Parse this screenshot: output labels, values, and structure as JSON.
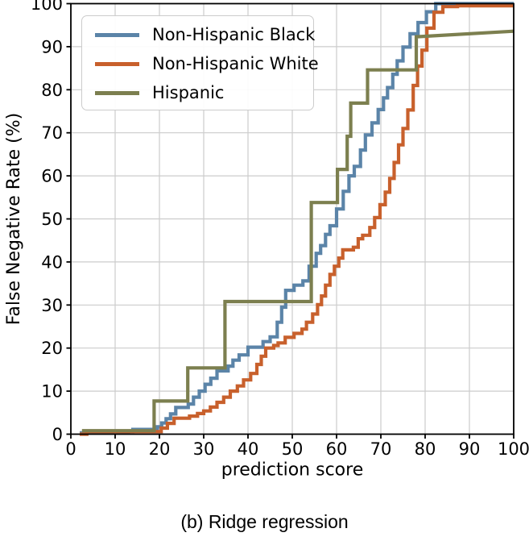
{
  "figure": {
    "caption": "(b) Ridge regression"
  },
  "chart_data": {
    "type": "line",
    "title": "",
    "xlabel": "prediction score",
    "ylabel": "False Negative Rate (%)",
    "xlim": [
      0,
      100
    ],
    "ylim": [
      0,
      100
    ],
    "xticks": [
      0,
      10,
      20,
      30,
      40,
      50,
      60,
      70,
      80,
      90,
      100
    ],
    "yticks": [
      0,
      10,
      20,
      30,
      40,
      50,
      60,
      70,
      80,
      90,
      100
    ],
    "grid": true,
    "grid_color": "#cccccc",
    "spine_color": "#000000",
    "legend_position": "upper left",
    "series": [
      {
        "name": "Non-Hispanic Black",
        "color": "#5b84a8",
        "interp": "step-post",
        "points": [
          [
            2,
            0.3
          ],
          [
            13,
            0.6
          ],
          [
            14,
            1.1
          ],
          [
            19.5,
            1.7
          ],
          [
            20.5,
            2.6
          ],
          [
            21.5,
            3.6
          ],
          [
            22.5,
            4.7
          ],
          [
            23.7,
            6.2
          ],
          [
            26.5,
            7.0
          ],
          [
            27.7,
            8.6
          ],
          [
            29,
            10.0
          ],
          [
            30.3,
            11.6
          ],
          [
            31.6,
            13.0
          ],
          [
            33,
            14.7
          ],
          [
            35.5,
            15.8
          ],
          [
            36.6,
            17.2
          ],
          [
            38,
            18.4
          ],
          [
            40,
            20.2
          ],
          [
            43.4,
            21.5
          ],
          [
            45,
            22.6
          ],
          [
            46.6,
            26.0
          ],
          [
            47.6,
            29.5
          ],
          [
            48.5,
            33.4
          ],
          [
            50.4,
            34.6
          ],
          [
            52.4,
            35.6
          ],
          [
            53.8,
            39.0
          ],
          [
            55.4,
            42.0
          ],
          [
            56.4,
            43.8
          ],
          [
            57.5,
            46.4
          ],
          [
            58.5,
            48.4
          ],
          [
            60,
            52.3
          ],
          [
            61.5,
            56.4
          ],
          [
            62.8,
            60.0
          ],
          [
            64,
            62.2
          ],
          [
            65.4,
            66.0
          ],
          [
            66.5,
            69.5
          ],
          [
            68,
            72.3
          ],
          [
            69.4,
            75.4
          ],
          [
            70.6,
            78.1
          ],
          [
            71.5,
            80.5
          ],
          [
            72.7,
            83.6
          ],
          [
            73.7,
            86.7
          ],
          [
            75,
            89.9
          ],
          [
            76.6,
            93.0
          ],
          [
            78.4,
            95.6
          ],
          [
            80.3,
            98.1
          ],
          [
            82.4,
            100
          ],
          [
            100,
            100
          ]
        ]
      },
      {
        "name": "Non-Hispanic White",
        "color": "#c8602c",
        "interp": "step-post",
        "points": [
          [
            2,
            0
          ],
          [
            3.6,
            0.6
          ],
          [
            19,
            0.6
          ],
          [
            20.4,
            1.4
          ],
          [
            21.8,
            2.5
          ],
          [
            23.3,
            3.7
          ],
          [
            26.8,
            4.2
          ],
          [
            28.6,
            4.8
          ],
          [
            30,
            5.4
          ],
          [
            31.5,
            6.3
          ],
          [
            33,
            7.4
          ],
          [
            34.5,
            8.6
          ],
          [
            36,
            10.0
          ],
          [
            37.6,
            11.2
          ],
          [
            39,
            12.6
          ],
          [
            40.6,
            14.1
          ],
          [
            42,
            16.2
          ],
          [
            43,
            18.1
          ],
          [
            44,
            20.0
          ],
          [
            45.8,
            20.6
          ],
          [
            46.8,
            21.2
          ],
          [
            48.4,
            22.5
          ],
          [
            50.4,
            23.4
          ],
          [
            52.2,
            24.4
          ],
          [
            53.2,
            26.0
          ],
          [
            54.6,
            27.9
          ],
          [
            55.7,
            30.1
          ],
          [
            56.6,
            32.1
          ],
          [
            57.5,
            34.6
          ],
          [
            58.5,
            37.1
          ],
          [
            59.5,
            39.0
          ],
          [
            60.5,
            40.9
          ],
          [
            61.4,
            42.8
          ],
          [
            63.8,
            43.4
          ],
          [
            64.9,
            45.4
          ],
          [
            65.9,
            46.2
          ],
          [
            67.5,
            48.0
          ],
          [
            68.6,
            50.3
          ],
          [
            69.8,
            53.3
          ],
          [
            71,
            56.2
          ],
          [
            72,
            59.4
          ],
          [
            73,
            63.1
          ],
          [
            74,
            67.2
          ],
          [
            75,
            71.0
          ],
          [
            76.1,
            75.3
          ],
          [
            77.3,
            81.0
          ],
          [
            78.3,
            85.5
          ],
          [
            79.3,
            89.2
          ],
          [
            80.4,
            94.3
          ],
          [
            82,
            98.0
          ],
          [
            84,
            99.3
          ],
          [
            87.3,
            99.5
          ],
          [
            100,
            99.5
          ]
        ]
      },
      {
        "name": "Hispanic",
        "color": "#7c7f4f",
        "interp": "linear",
        "points": [
          [
            2.5,
            0.8
          ],
          [
            18.8,
            0.8
          ],
          [
            18.8,
            7.7
          ],
          [
            26.4,
            7.7
          ],
          [
            26.4,
            15.4
          ],
          [
            34.8,
            15.4
          ],
          [
            34.8,
            30.8
          ],
          [
            54.3,
            30.8
          ],
          [
            54.3,
            53.8
          ],
          [
            60.2,
            53.8
          ],
          [
            60.2,
            61.5
          ],
          [
            62.4,
            61.5
          ],
          [
            62.4,
            69.2
          ],
          [
            63.2,
            69.2
          ],
          [
            63.2,
            76.9
          ],
          [
            67,
            76.9
          ],
          [
            67,
            84.6
          ],
          [
            78,
            84.6
          ],
          [
            78,
            92.3
          ],
          [
            100,
            93.6
          ]
        ]
      }
    ]
  }
}
